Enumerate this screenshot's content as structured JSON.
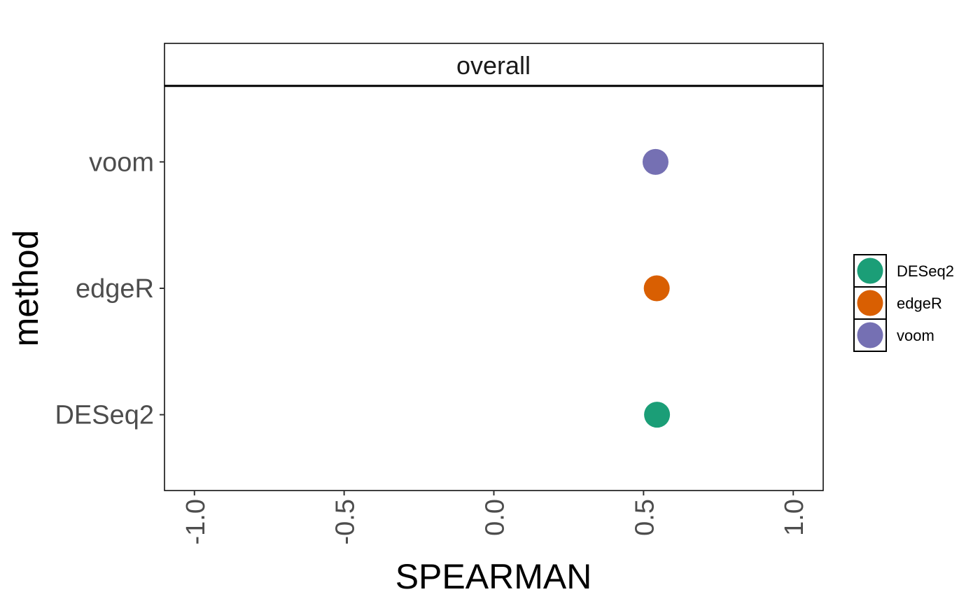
{
  "chart_data": {
    "type": "scatter",
    "facet_label": "overall",
    "xlabel": "SPEARMAN",
    "ylabel": "method",
    "xlim": [
      -1.1,
      1.1
    ],
    "x_ticks": [
      "-1.0",
      "-0.5",
      "0.0",
      "0.5",
      "1.0"
    ],
    "x_tick_values": [
      -1.0,
      -0.5,
      0.0,
      0.5,
      1.0
    ],
    "categories": [
      "DESeq2",
      "edgeR",
      "voom"
    ],
    "series": [
      {
        "name": "DESeq2",
        "x": 0.545,
        "y": "DESeq2",
        "color": "#1B9E77"
      },
      {
        "name": "edgeR",
        "x": 0.544,
        "y": "edgeR",
        "color": "#D95F02"
      },
      {
        "name": "voom",
        "x": 0.54,
        "y": "voom",
        "color": "#7570B3"
      }
    ],
    "legend_position": "right",
    "grid": false
  }
}
